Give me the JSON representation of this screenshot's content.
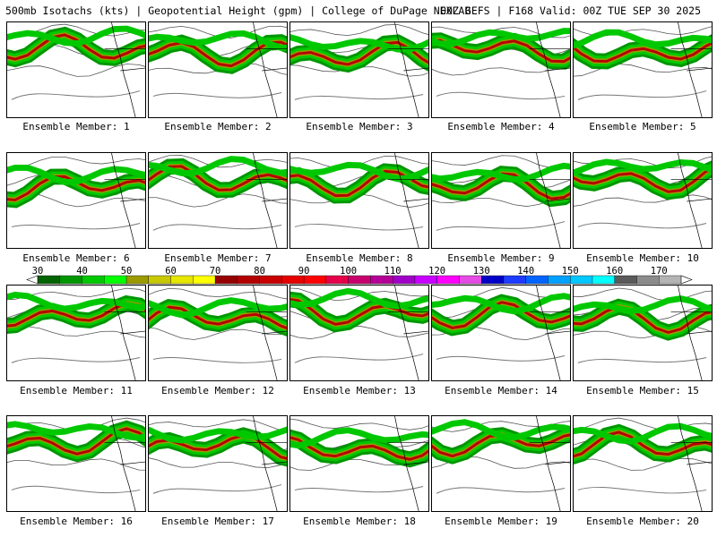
{
  "header": {
    "left": "500mb Isotachs (kts) | Geopotential Height (gpm) | College of DuPage NEXLAB",
    "right": "00Z GEFS | F168 Valid: 00Z TUE SEP 30 2025"
  },
  "colorbar": {
    "labels": [
      "30",
      "40",
      "50",
      "60",
      "70",
      "80",
      "90",
      "100",
      "110",
      "120",
      "130",
      "140",
      "150",
      "160",
      "170"
    ],
    "colors": [
      "#006400",
      "#009600",
      "#00c800",
      "#00ff00",
      "#9b9b00",
      "#c8c800",
      "#e6e600",
      "#ffff00",
      "#960000",
      "#b40000",
      "#c80000",
      "#e60000",
      "#ff0000",
      "#e6004a",
      "#c8006e",
      "#b40096",
      "#a000c8",
      "#c800ff",
      "#ff00ff",
      "#e64be6",
      "#0000c8",
      "#1e3cff",
      "#0064ff",
      "#00a0ff",
      "#00c8ff",
      "#00ffff",
      "#5a5a5a",
      "#8c8c8c",
      "#b4b4b4"
    ]
  },
  "panels": [
    {
      "caption": "Ensemble Member: 1"
    },
    {
      "caption": "Ensemble Member: 2"
    },
    {
      "caption": "Ensemble Member: 3"
    },
    {
      "caption": "Ensemble Member: 4"
    },
    {
      "caption": "Ensemble Member: 5"
    },
    {
      "caption": "Ensemble Member: 6"
    },
    {
      "caption": "Ensemble Member: 7"
    },
    {
      "caption": "Ensemble Member: 8"
    },
    {
      "caption": "Ensemble Member: 9"
    },
    {
      "caption": "Ensemble Member: 10"
    },
    {
      "caption": "Ensemble Member: 11"
    },
    {
      "caption": "Ensemble Member: 12"
    },
    {
      "caption": "Ensemble Member: 13"
    },
    {
      "caption": "Ensemble Member: 14"
    },
    {
      "caption": "Ensemble Member: 15"
    },
    {
      "caption": "Ensemble Member: 16"
    },
    {
      "caption": "Ensemble Member: 17"
    },
    {
      "caption": "Ensemble Member: 18"
    },
    {
      "caption": "Ensemble Member: 19"
    },
    {
      "caption": "Ensemble Member: 20"
    }
  ]
}
